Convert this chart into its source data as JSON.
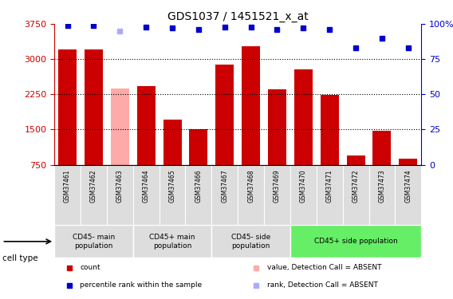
{
  "title": "GDS1037 / 1451521_x_at",
  "samples": [
    "GSM37461",
    "GSM37462",
    "GSM37463",
    "GSM37464",
    "GSM37465",
    "GSM37466",
    "GSM37467",
    "GSM37468",
    "GSM37469",
    "GSM37470",
    "GSM37471",
    "GSM37472",
    "GSM37473",
    "GSM37474"
  ],
  "counts": [
    3200,
    3200,
    2380,
    2430,
    1720,
    1510,
    2880,
    3280,
    2350,
    2780,
    2240,
    940,
    1480,
    880
  ],
  "absent_flags": [
    false,
    false,
    true,
    false,
    false,
    false,
    false,
    false,
    false,
    false,
    false,
    false,
    false,
    false
  ],
  "percentile_ranks": [
    99,
    99,
    95,
    98,
    97,
    96,
    98,
    98,
    96,
    97,
    96,
    83,
    90,
    83
  ],
  "rank_absent_flags": [
    false,
    false,
    true,
    false,
    false,
    false,
    false,
    false,
    false,
    false,
    false,
    false,
    false,
    false
  ],
  "ylim_left": [
    750,
    3750
  ],
  "ylim_right": [
    0,
    100
  ],
  "yticks_left": [
    750,
    1500,
    2250,
    3000,
    3750
  ],
  "yticks_right": [
    0,
    25,
    50,
    75,
    100
  ],
  "bar_color": "#cc0000",
  "bar_absent_color": "#ffaaaa",
  "dot_color": "#0000cc",
  "dot_absent_color": "#aaaaff",
  "cell_type_groups": [
    {
      "label": "CD45- main\npopulation",
      "start": 0,
      "end": 2,
      "color": "#dddddd"
    },
    {
      "label": "CD45+ main\npopulation",
      "start": 3,
      "end": 5,
      "color": "#dddddd"
    },
    {
      "label": "CD45- side\npopulation",
      "start": 6,
      "end": 8,
      "color": "#dddddd"
    },
    {
      "label": "CD45+ side population",
      "start": 9,
      "end": 13,
      "color": "#66ee66"
    }
  ],
  "legend_items": [
    {
      "label": "count",
      "color": "#cc0000"
    },
    {
      "label": "percentile rank within the sample",
      "color": "#0000cc"
    },
    {
      "label": "value, Detection Call = ABSENT",
      "color": "#ffaaaa"
    },
    {
      "label": "rank, Detection Call = ABSENT",
      "color": "#aaaaff"
    }
  ],
  "left_axis_color": "#cc0000",
  "right_axis_color": "#0000cc",
  "cell_type_label": "cell type",
  "figsize": [
    5.68,
    3.75
  ],
  "dpi": 100
}
